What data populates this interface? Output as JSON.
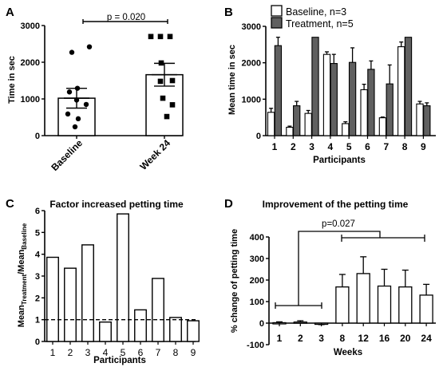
{
  "chart_data": [
    {
      "panel": "A",
      "type": "bar",
      "title": "",
      "ylabel": "Time in sec",
      "xlabel": "",
      "ylim": [
        0,
        3000
      ],
      "yticks": [
        "0",
        "1000",
        "2000",
        "3000"
      ],
      "categories": [
        "Baseline",
        "Week 24"
      ],
      "values": [
        1020,
        1660
      ],
      "errors": [
        270,
        310
      ],
      "points": [
        {
          "marker": "circle",
          "values": [
            2420,
            2270,
            1290,
            1190,
            970,
            850,
            590,
            460,
            240
          ]
        },
        {
          "marker": "square",
          "values": [
            2700,
            2700,
            2700,
            1980,
            1500,
            1480,
            1020,
            840,
            520
          ]
        }
      ],
      "annotation": "p = 0.020"
    },
    {
      "panel": "B",
      "type": "bar",
      "title": "",
      "ylabel": "Mean time in sec",
      "xlabel": "Participants",
      "ylim": [
        0,
        3000
      ],
      "yticks": [
        "0",
        "1000",
        "2000",
        "3000"
      ],
      "categories": [
        "1",
        "2",
        "3",
        "4",
        "5",
        "6",
        "7",
        "8",
        "9"
      ],
      "series": [
        {
          "name": "Baseline, n=3",
          "color": "#ffffff",
          "values": [
            640,
            230,
            610,
            2230,
            330,
            1260,
            490,
            2440,
            870
          ],
          "errors": [
            110,
            30,
            80,
            70,
            50,
            150,
            20,
            130,
            70
          ]
        },
        {
          "name": "Treatment, n=5",
          "color": "#606060",
          "values": [
            2470,
            820,
            2700,
            1980,
            2010,
            1820,
            1420,
            2700,
            820
          ],
          "errors": [
            230,
            120,
            0,
            250,
            400,
            230,
            520,
            0,
            80
          ]
        }
      ],
      "legend": "top"
    },
    {
      "panel": "C",
      "type": "bar",
      "title": "Factor increased petting time",
      "ylabel_parts": {
        "a": "Mean",
        "a_sub": "Treatment",
        "b": "/Mean",
        "b_sub": "Baseline"
      },
      "xlabel": "Participants",
      "ylim": [
        0,
        6
      ],
      "yticks": [
        "0",
        "1",
        "2",
        "3",
        "4",
        "5",
        "6"
      ],
      "categories": [
        "1",
        "2",
        "3",
        "4",
        "5",
        "6",
        "7",
        "8",
        "9"
      ],
      "values": [
        3.86,
        3.36,
        4.43,
        0.89,
        5.85,
        1.45,
        2.89,
        1.1,
        0.95
      ],
      "reference_line": 1
    },
    {
      "panel": "D",
      "type": "bar",
      "title": "Improvement of the petting time",
      "ylabel": "% change of petting time",
      "xlabel": "Weeks",
      "ylim": [
        -100,
        400
      ],
      "yticks": [
        "-100",
        "0",
        "100",
        "200",
        "300",
        "400"
      ],
      "categories": [
        "1",
        "2",
        "3",
        "8",
        "12",
        "16",
        "20",
        "24"
      ],
      "values": [
        2,
        5,
        -3,
        168,
        230,
        172,
        168,
        130
      ],
      "errors": [
        4,
        6,
        4,
        58,
        78,
        78,
        78,
        50
      ],
      "annotation": "p=0.027"
    }
  ]
}
